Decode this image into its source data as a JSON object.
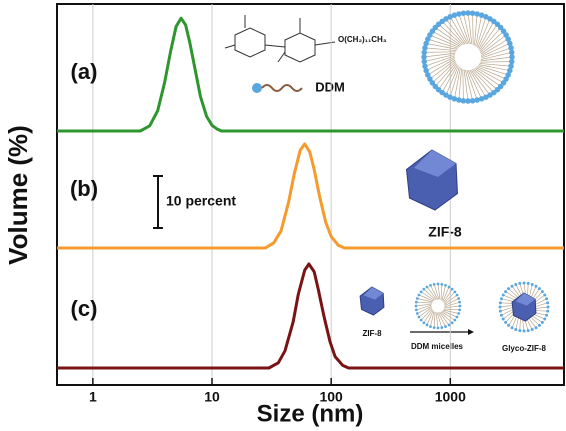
{
  "chart_data": {
    "type": "line",
    "xlabel": "Size (nm)",
    "ylabel": "Volume (%)",
    "log_x": true,
    "grid": true,
    "xlim": [
      0.5,
      9000
    ],
    "xticks": [
      1,
      10,
      100,
      1000
    ],
    "ylim": [
      0,
      23
    ],
    "scale_bar": {
      "value": 10,
      "label": "10 percent"
    },
    "series": [
      {
        "name": "(a)",
        "color": "#2e962e",
        "x": [
          0.5,
          2.5,
          3,
          3.5,
          4,
          4.5,
          5,
          5.5,
          6,
          6.5,
          7,
          8,
          9,
          10,
          11,
          12,
          9000
        ],
        "values": [
          0,
          0,
          1.0,
          3.9,
          9.3,
          15.4,
          20.1,
          21.7,
          20.4,
          17.1,
          13.3,
          6.6,
          2.8,
          1.1,
          0.4,
          0,
          0
        ]
      },
      {
        "name": "(b)",
        "color": "#f59a2c",
        "x": [
          0.5,
          28,
          33,
          38,
          44,
          49,
          55,
          60,
          66,
          72,
          80,
          90,
          100,
          115,
          130,
          9000
        ],
        "values": [
          0,
          0,
          1.0,
          3.3,
          8.9,
          14.2,
          18.8,
          20,
          18.5,
          15.1,
          9.9,
          5.0,
          2.2,
          0.5,
          0,
          0
        ]
      },
      {
        "name": "(c)",
        "color": "#7a1414",
        "x": [
          0.5,
          30,
          36,
          41,
          48,
          53,
          60,
          65,
          72,
          78,
          87,
          98,
          108,
          125,
          140,
          9000
        ],
        "values": [
          0,
          0,
          1.0,
          3.3,
          8.9,
          14.2,
          18.8,
          20,
          18.5,
          15.1,
          9.9,
          5.0,
          2.2,
          0.5,
          0,
          0
        ]
      }
    ],
    "annotations": {
      "ddm": "DDM",
      "zif8": "ZIF-8",
      "zif8_small": "ZIF-8",
      "micelles": "DDM micelles",
      "glyco": "Glyco-ZIF-8"
    }
  }
}
